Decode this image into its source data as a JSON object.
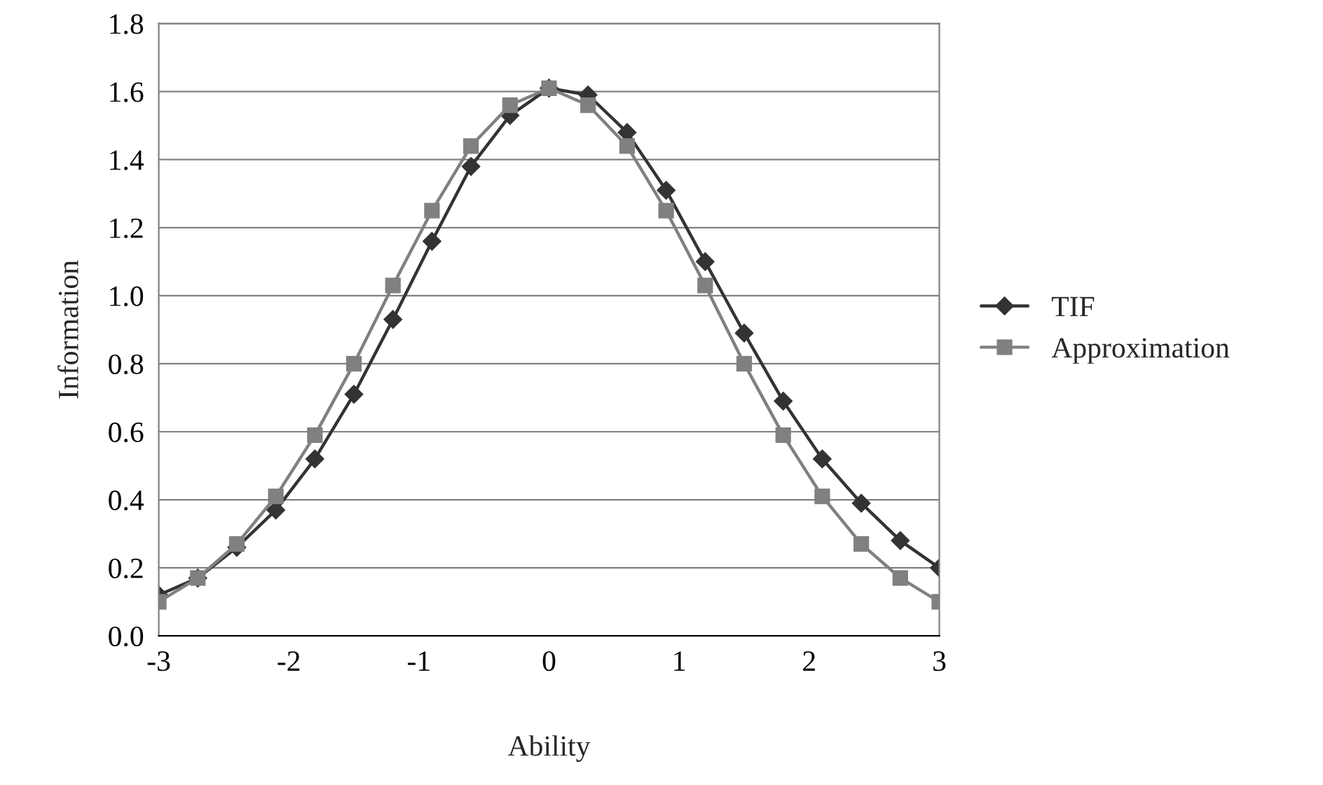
{
  "chart_data": {
    "type": "line",
    "xlabel": "Ability",
    "ylabel": "Information",
    "x": [
      -3,
      -2.7,
      -2.4,
      -2.1,
      -1.8,
      -1.5,
      -1.2,
      -0.9,
      -0.6,
      -0.3,
      0,
      0.3,
      0.6,
      0.9,
      1.2,
      1.5,
      1.8,
      2.1,
      2.4,
      2.7,
      3
    ],
    "series": [
      {
        "name": "TIF",
        "color": "#333333",
        "marker": "diamond",
        "values": [
          0.12,
          0.17,
          0.26,
          0.37,
          0.52,
          0.71,
          0.93,
          1.16,
          1.38,
          1.53,
          1.61,
          1.59,
          1.48,
          1.31,
          1.1,
          0.89,
          0.69,
          0.52,
          0.39,
          0.28,
          0.2
        ]
      },
      {
        "name": "Approximation",
        "color": "#808080",
        "marker": "square",
        "values": [
          0.1,
          0.17,
          0.27,
          0.41,
          0.59,
          0.8,
          1.03,
          1.25,
          1.44,
          1.56,
          1.61,
          1.56,
          1.44,
          1.25,
          1.03,
          0.8,
          0.59,
          0.41,
          0.27,
          0.17,
          0.1
        ]
      }
    ],
    "xlim": [
      -3,
      3
    ],
    "xticks": [
      -3,
      -2,
      -1,
      0,
      1,
      2,
      3
    ],
    "ylim": [
      0,
      1.8
    ],
    "yticks": [
      {
        "value": 0,
        "label": "0.0"
      },
      {
        "value": 0.2,
        "label": "0.2"
      },
      {
        "value": 0.4,
        "label": "0.4"
      },
      {
        "value": 0.6,
        "label": "0.6"
      },
      {
        "value": 0.8,
        "label": "0.8"
      },
      {
        "value": 1.0,
        "label": "1.0"
      },
      {
        "value": 1.2,
        "label": "1.2"
      },
      {
        "value": 1.4,
        "label": "1.4"
      },
      {
        "value": 1.6,
        "label": "1.6"
      },
      {
        "value": 1.8,
        "label": "1.8"
      }
    ],
    "grid": "y",
    "legend": "right",
    "line_style": "solid"
  }
}
